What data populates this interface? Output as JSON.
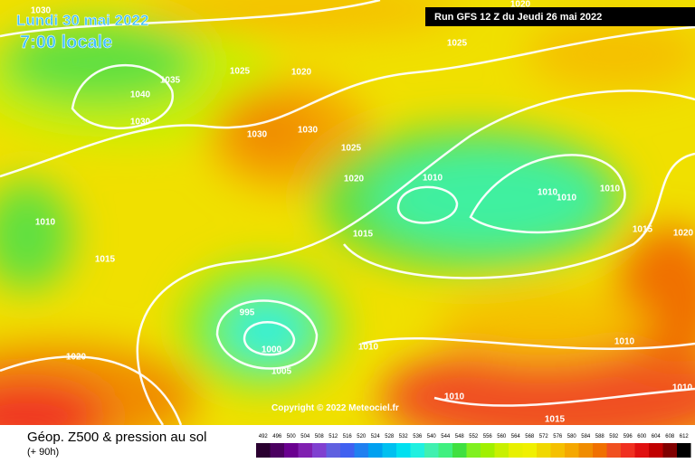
{
  "header": {
    "date": "Lundi 30 mai 2022",
    "time": "7:00 locale",
    "run": "Run GFS 12 Z du Jeudi 26 mai 2022"
  },
  "copyright": "Copyright © 2022 Meteociel.fr",
  "footer": {
    "title": "Géop. Z500 & pression au sol",
    "lead": "(+ 90h)"
  },
  "pressure_labels": [
    "1030",
    "1020",
    "1025",
    "1025",
    "1020",
    "1035",
    "1040",
    "1030",
    "1030",
    "1030",
    "1025",
    "1020",
    "1010",
    "1010",
    "1010",
    "1010",
    "1010",
    "1015",
    "1015",
    "1020",
    "1015",
    "995",
    "1000",
    "1010",
    "1010",
    "1005",
    "1020",
    "1010",
    "1010",
    "1015"
  ],
  "legend": {
    "values": [
      492,
      496,
      500,
      504,
      508,
      512,
      516,
      520,
      524,
      528,
      532,
      536,
      540,
      544,
      548,
      552,
      556,
      560,
      564,
      568,
      572,
      576,
      580,
      584,
      588,
      592,
      596,
      600,
      604,
      608,
      612
    ],
    "colors": [
      "#2a0030",
      "#4b0060",
      "#6a0090",
      "#8020b0",
      "#8040d0",
      "#6060e0",
      "#4060f0",
      "#2080f0",
      "#00a0f0",
      "#00c0f0",
      "#00e0f0",
      "#20f0e0",
      "#40f0b0",
      "#40f080",
      "#40e040",
      "#80f020",
      "#a0f000",
      "#c8f000",
      "#e8f000",
      "#f0f000",
      "#f0d800",
      "#f5c000",
      "#f5a800",
      "#f08c00",
      "#f07000",
      "#f05020",
      "#f03020",
      "#e01010",
      "#c00000",
      "#800000",
      "#000000"
    ]
  }
}
